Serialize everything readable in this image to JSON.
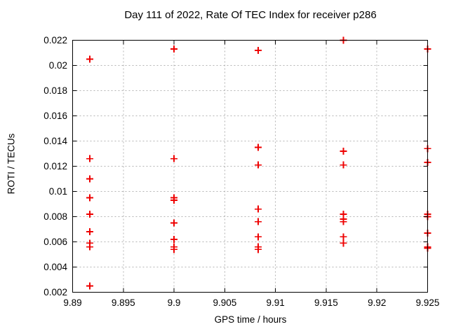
{
  "chart_data": {
    "type": "scatter",
    "title": "Day 111 of 2022, Rate Of TEC Index for receiver p286",
    "xlabel": "GPS time / hours",
    "ylabel": "ROTI / TECUs",
    "xlim": [
      9.89,
      9.925
    ],
    "ylim": [
      0.002,
      0.022
    ],
    "xticks": [
      9.89,
      9.895,
      9.9,
      9.905,
      9.91,
      9.915,
      9.92,
      9.925
    ],
    "xtick_labels": [
      "9.89",
      "9.895",
      "9.9",
      "9.905",
      "9.91",
      "9.915",
      "9.92",
      "9.925"
    ],
    "yticks": [
      0.002,
      0.004,
      0.006,
      0.008,
      0.01,
      0.012,
      0.014,
      0.016,
      0.018,
      0.02,
      0.022
    ],
    "ytick_labels": [
      "0.002",
      "0.004",
      "0.006",
      "0.008",
      "0.01",
      "0.012",
      "0.014",
      "0.016",
      "0.018",
      "0.02",
      "0.022"
    ],
    "grid": true,
    "legend": false,
    "marker": "plus",
    "colors": {
      "marker": "#ee0000",
      "grid": "#b4b4b4",
      "axis": "#000000",
      "text": "#000000",
      "background": "#ffffff"
    },
    "series": [
      {
        "name": "ROTI",
        "points": [
          [
            9.8917,
            0.0205
          ],
          [
            9.8917,
            0.0126
          ],
          [
            9.8917,
            0.011
          ],
          [
            9.8917,
            0.0095
          ],
          [
            9.8917,
            0.0082
          ],
          [
            9.8917,
            0.0068
          ],
          [
            9.8917,
            0.0059
          ],
          [
            9.8917,
            0.0056
          ],
          [
            9.8917,
            0.0025
          ],
          [
            9.9,
            0.0213
          ],
          [
            9.9,
            0.0126
          ],
          [
            9.9,
            0.0095
          ],
          [
            9.9,
            0.0093
          ],
          [
            9.9,
            0.0075
          ],
          [
            9.9,
            0.0062
          ],
          [
            9.9,
            0.0056
          ],
          [
            9.9,
            0.0054
          ],
          [
            9.9083,
            0.0212
          ],
          [
            9.9083,
            0.0135
          ],
          [
            9.9083,
            0.0121
          ],
          [
            9.9083,
            0.0086
          ],
          [
            9.9083,
            0.0076
          ],
          [
            9.9083,
            0.0064
          ],
          [
            9.9083,
            0.0056
          ],
          [
            9.9083,
            0.0054
          ],
          [
            9.9167,
            0.022
          ],
          [
            9.9167,
            0.0132
          ],
          [
            9.9167,
            0.0121
          ],
          [
            9.9167,
            0.0082
          ],
          [
            9.9167,
            0.0078
          ],
          [
            9.9167,
            0.0076
          ],
          [
            9.9167,
            0.0064
          ],
          [
            9.9167,
            0.0059
          ],
          [
            9.925,
            0.0213
          ],
          [
            9.925,
            0.0134
          ],
          [
            9.925,
            0.0123
          ],
          [
            9.925,
            0.0082
          ],
          [
            9.925,
            0.008
          ],
          [
            9.925,
            0.0067
          ],
          [
            9.925,
            0.0056
          ],
          [
            9.925,
            0.0055
          ]
        ]
      }
    ]
  }
}
